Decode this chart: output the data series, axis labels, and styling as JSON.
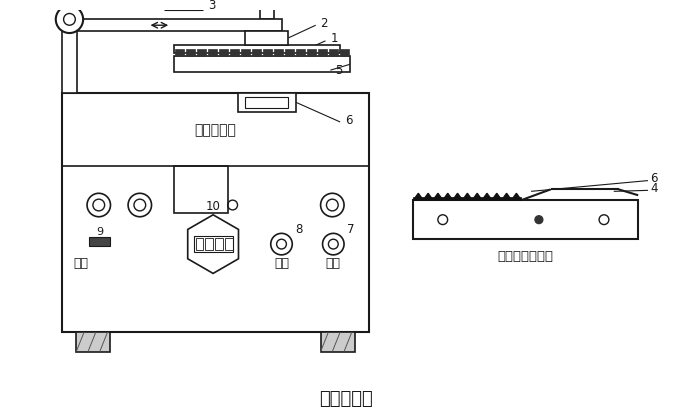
{
  "title": "织物起球仪",
  "subtitle_machine": "起毛起球仪",
  "side_view_label": "磨台的右侧视图",
  "bg_color": "#ffffff",
  "line_color": "#1a1a1a",
  "panel_texts": {
    "zhifan": "止反",
    "qidong": "起动",
    "tingzhi": "停止"
  }
}
